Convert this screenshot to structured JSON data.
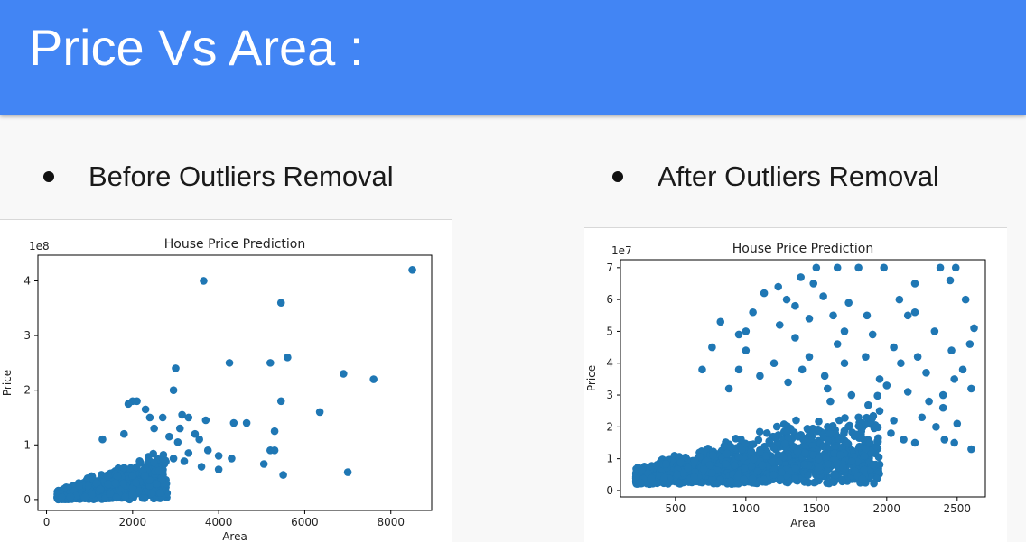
{
  "slide": {
    "title": "Price Vs Area :",
    "accent_color": "#4285f4",
    "bullets": [
      {
        "label": "Before Outliers Removal"
      },
      {
        "label": "After Outliers Removal"
      }
    ]
  },
  "chart_data": [
    {
      "type": "scatter",
      "title": "House Price Prediction",
      "xlabel": "Area",
      "ylabel": "Price",
      "offset_label": "1e8",
      "color": "#1f77b4",
      "xlim": [
        -200,
        8950
      ],
      "ylim": [
        -0.2,
        4.47
      ],
      "xticks": [
        0,
        2000,
        4000,
        6000,
        8000
      ],
      "xtick_labels": [
        "0",
        "2000",
        "4000",
        "6000",
        "8000"
      ],
      "yticks": [
        0,
        1,
        2,
        3,
        4
      ],
      "ytick_labels": [
        "0",
        "1",
        "2",
        "3",
        "4"
      ],
      "grid": false,
      "cluster": {
        "x_range": [
          250,
          2800
        ],
        "y_range": [
          0,
          1.0
        ],
        "approx_points": 900
      },
      "points": [
        [
          8500,
          4.2
        ],
        [
          3650,
          4.0
        ],
        [
          5450,
          3.6
        ],
        [
          5600,
          2.6
        ],
        [
          5200,
          2.5
        ],
        [
          4250,
          2.5
        ],
        [
          3000,
          2.4
        ],
        [
          6900,
          2.3
        ],
        [
          7600,
          2.2
        ],
        [
          5450,
          1.8
        ],
        [
          2950,
          2.0
        ],
        [
          2100,
          1.8
        ],
        [
          2000,
          1.8
        ],
        [
          1900,
          1.75
        ],
        [
          2300,
          1.65
        ],
        [
          6350,
          1.6
        ],
        [
          3150,
          1.55
        ],
        [
          3300,
          1.5
        ],
        [
          3700,
          1.45
        ],
        [
          2700,
          1.5
        ],
        [
          2400,
          1.5
        ],
        [
          4350,
          1.4
        ],
        [
          4650,
          1.4
        ],
        [
          3100,
          1.3
        ],
        [
          5300,
          1.25
        ],
        [
          3450,
          1.2
        ],
        [
          2500,
          1.3
        ],
        [
          1800,
          1.2
        ],
        [
          2850,
          1.15
        ],
        [
          3550,
          1.1
        ],
        [
          3050,
          1.05
        ],
        [
          1300,
          1.1
        ],
        [
          5200,
          0.9
        ],
        [
          5300,
          0.9
        ],
        [
          3750,
          0.9
        ],
        [
          4000,
          0.8
        ],
        [
          3300,
          0.85
        ],
        [
          4300,
          0.75
        ],
        [
          5050,
          0.65
        ],
        [
          4000,
          0.55
        ],
        [
          5500,
          0.45
        ],
        [
          7000,
          0.5
        ],
        [
          3200,
          0.7
        ],
        [
          3600,
          0.6
        ],
        [
          2950,
          0.75
        ]
      ]
    },
    {
      "type": "scatter",
      "title": "House Price Prediction",
      "xlabel": "Area",
      "ylabel": "Price",
      "offset_label": "1e7",
      "color": "#1f77b4",
      "xlim": [
        110,
        2700
      ],
      "ylim": [
        -0.2,
        7.25
      ],
      "xticks": [
        500,
        1000,
        1500,
        2000,
        2500
      ],
      "xtick_labels": [
        "500",
        "1000",
        "1500",
        "2000",
        "2500"
      ],
      "yticks": [
        0,
        1,
        2,
        3,
        4,
        5,
        6,
        7
      ],
      "ytick_labels": [
        "0",
        "1",
        "2",
        "3",
        "4",
        "5",
        "6",
        "7"
      ],
      "grid": false,
      "cluster": {
        "x_range": [
          220,
          1950
        ],
        "y_range": [
          0.2,
          3.2
        ],
        "approx_points": 1400
      },
      "points": [
        [
          1500,
          7.0
        ],
        [
          1650,
          7.0
        ],
        [
          1800,
          7.0
        ],
        [
          1980,
          7.0
        ],
        [
          2380,
          7.0
        ],
        [
          2490,
          7.0
        ],
        [
          1390,
          6.7
        ],
        [
          1480,
          6.5
        ],
        [
          2200,
          6.5
        ],
        [
          1230,
          6.4
        ],
        [
          2090,
          6.0
        ],
        [
          2450,
          6.6
        ],
        [
          1130,
          6.2
        ],
        [
          1290,
          6.0
        ],
        [
          1550,
          6.1
        ],
        [
          1730,
          5.9
        ],
        [
          2560,
          6.0
        ],
        [
          1050,
          5.6
        ],
        [
          820,
          5.3
        ],
        [
          2200,
          5.6
        ],
        [
          2340,
          5.0
        ],
        [
          1620,
          5.5
        ],
        [
          950,
          4.9
        ],
        [
          1860,
          5.5
        ],
        [
          2620,
          5.1
        ],
        [
          2590,
          4.6
        ],
        [
          1350,
          4.8
        ],
        [
          2460,
          4.4
        ],
        [
          2050,
          4.5
        ],
        [
          760,
          4.5
        ],
        [
          2540,
          3.8
        ],
        [
          690,
          3.8
        ],
        [
          2600,
          3.2
        ],
        [
          2400,
          2.6
        ],
        [
          2600,
          1.3
        ],
        [
          2480,
          1.5
        ],
        [
          2410,
          1.6
        ],
        [
          2200,
          1.5
        ],
        [
          2120,
          1.6
        ],
        [
          1880,
          1.5
        ],
        [
          2030,
          1.8
        ],
        [
          2050,
          2.2
        ],
        [
          2300,
          2.8
        ],
        [
          2400,
          3.0
        ],
        [
          1950,
          3.5
        ],
        [
          1700,
          4.0
        ],
        [
          1450,
          4.2
        ],
        [
          1200,
          4.0
        ],
        [
          1750,
          3.0
        ],
        [
          2150,
          3.1
        ],
        [
          2280,
          3.7
        ],
        [
          1950,
          2.5
        ],
        [
          1800,
          2.3
        ],
        [
          2100,
          4.0
        ],
        [
          1560,
          3.6
        ],
        [
          1650,
          4.6
        ],
        [
          1850,
          4.2
        ],
        [
          1300,
          3.4
        ],
        [
          1100,
          3.6
        ],
        [
          950,
          3.8
        ],
        [
          880,
          3.2
        ],
        [
          2500,
          2.1
        ],
        [
          2250,
          2.3
        ],
        [
          1600,
          2.8
        ],
        [
          1400,
          3.8
        ],
        [
          1240,
          5.2
        ],
        [
          1000,
          4.4
        ],
        [
          2000,
          3.3
        ],
        [
          2220,
          4.2
        ],
        [
          2350,
          2.0
        ],
        [
          1700,
          5.0
        ],
        [
          2150,
          5.5
        ],
        [
          1900,
          4.9
        ],
        [
          2480,
          3.5
        ],
        [
          1450,
          5.4
        ],
        [
          1000,
          5.0
        ],
        [
          1350,
          5.8
        ],
        [
          1580,
          3.2
        ]
      ]
    }
  ]
}
